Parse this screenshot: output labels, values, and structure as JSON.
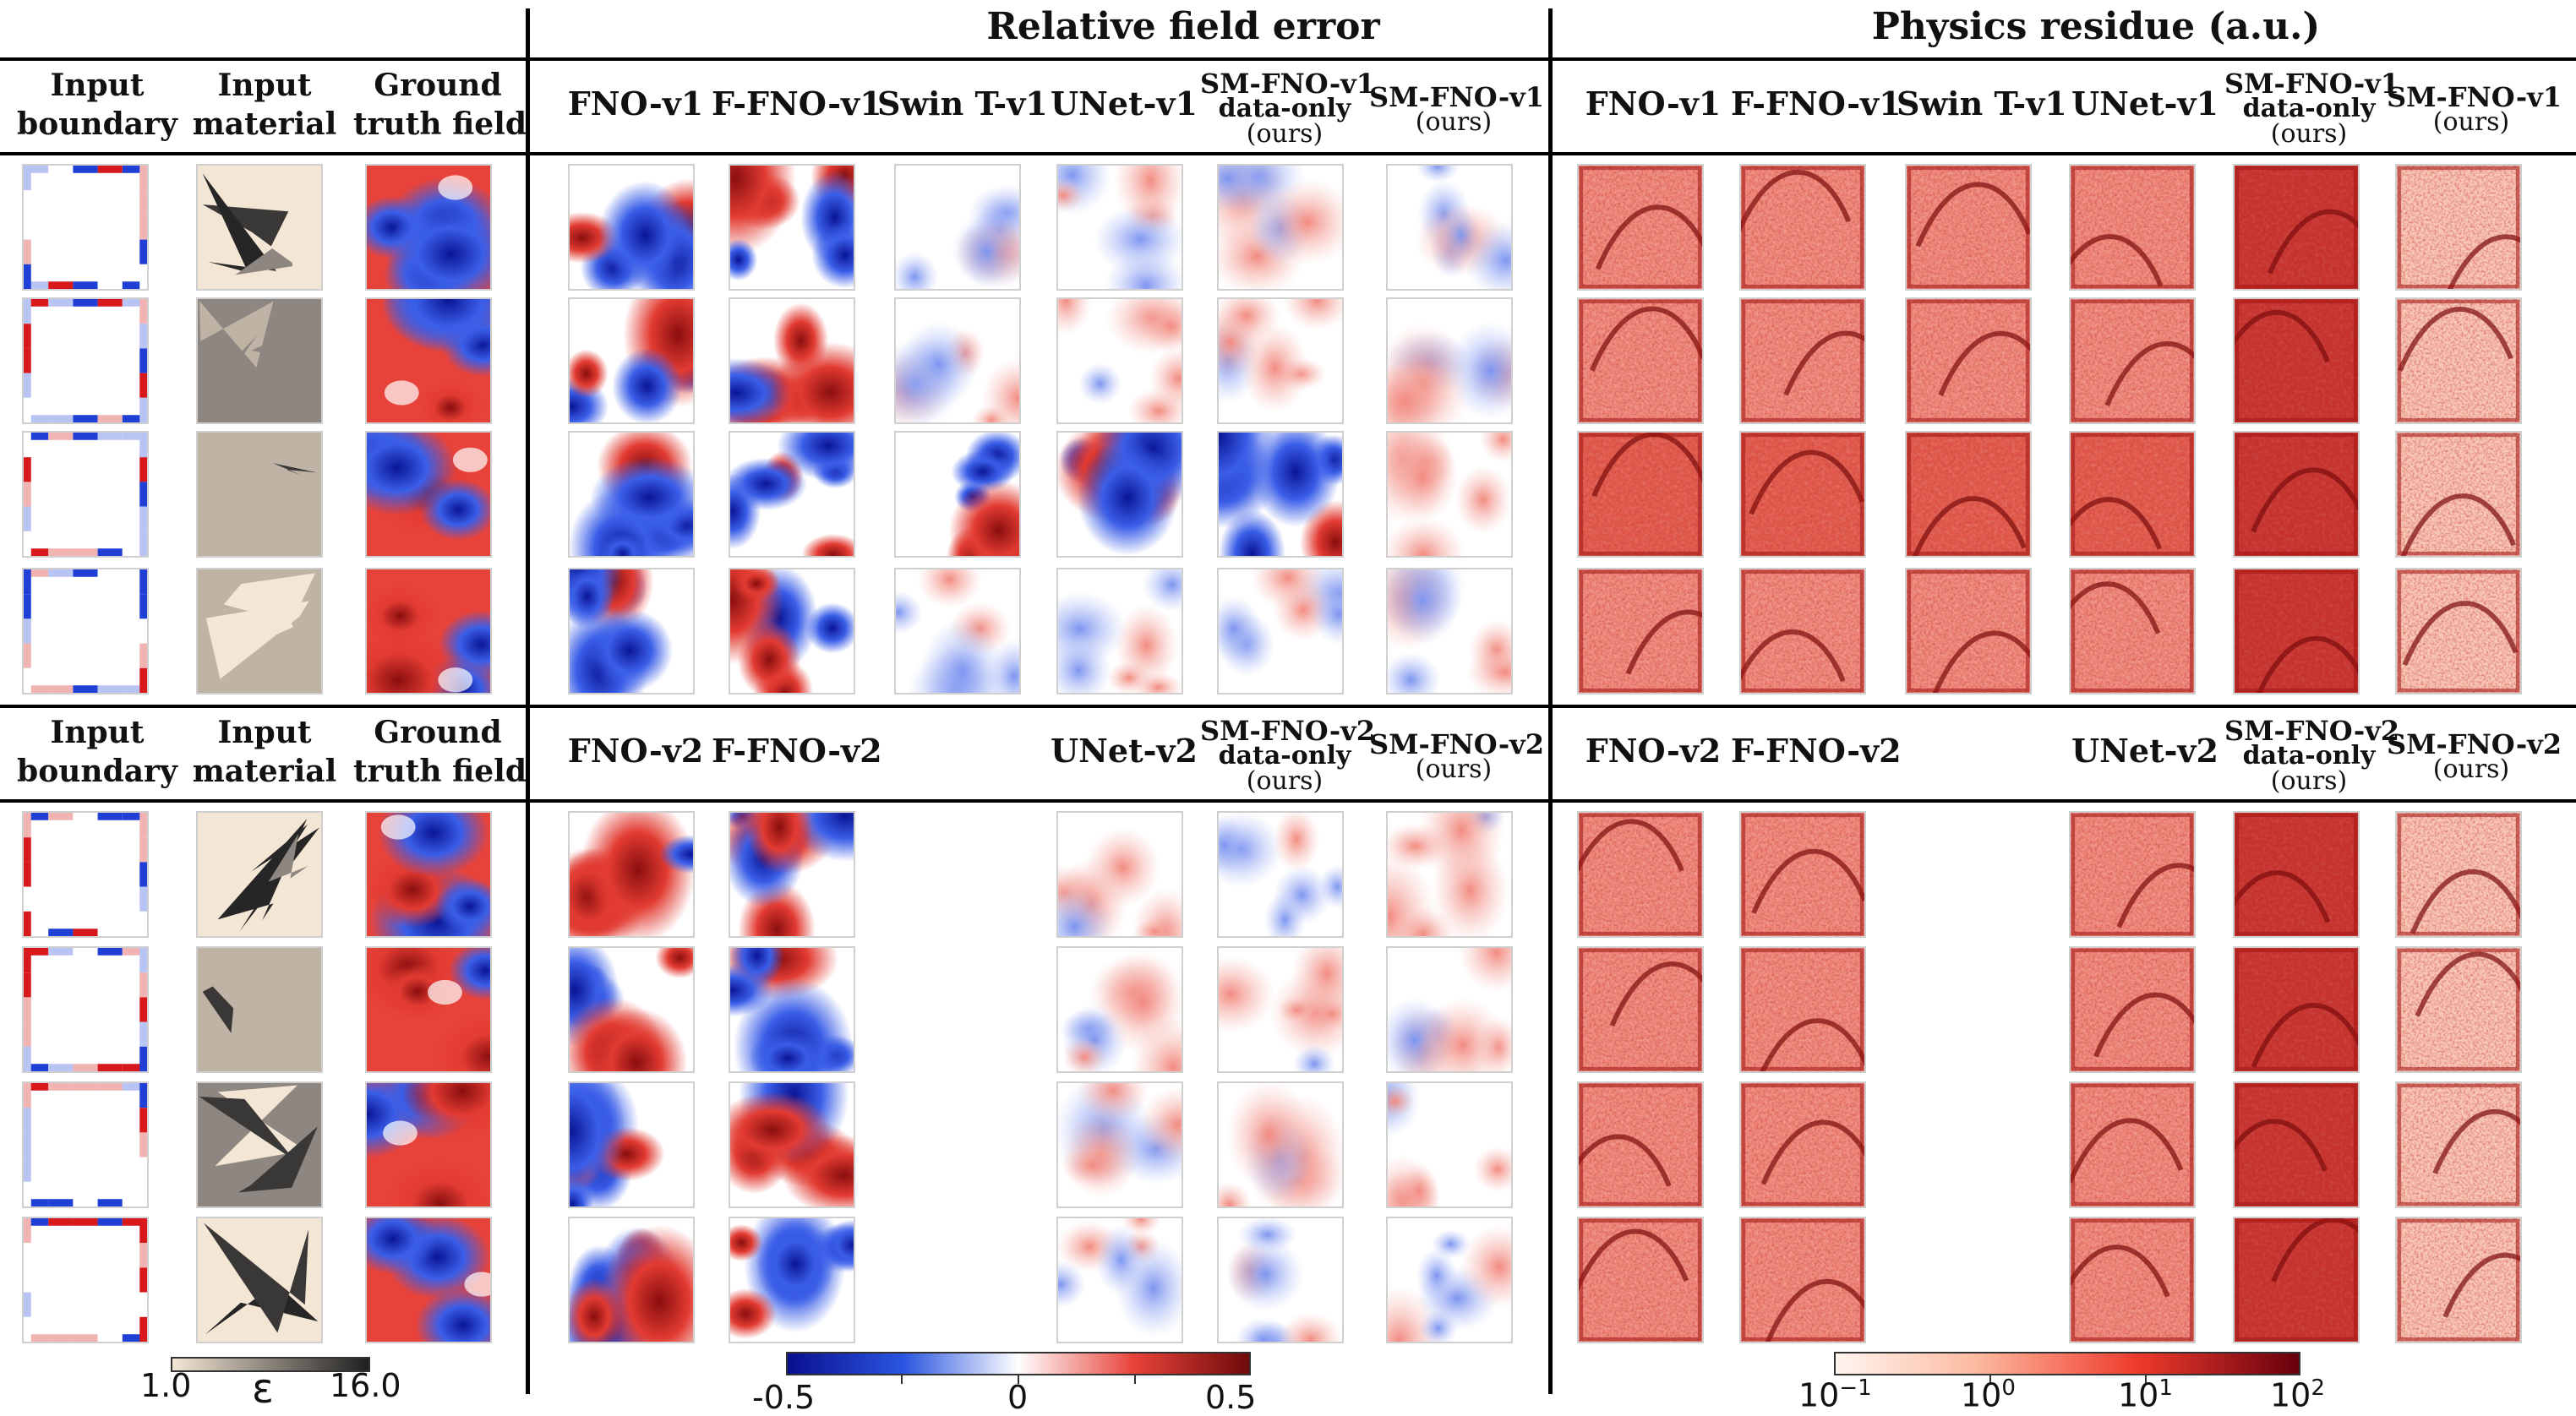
{
  "sections": {
    "relative_field_error": "Relative field error",
    "physics_residue": "Physics residue (a.u.)"
  },
  "input_headers": {
    "boundary": [
      "Input",
      "boundary"
    ],
    "material": [
      "Input",
      "material"
    ],
    "ground_truth": [
      "Ground",
      "truth field"
    ]
  },
  "v1_models": [
    {
      "lines": [
        "FNO-v1"
      ]
    },
    {
      "lines": [
        "F-FNO-v1"
      ]
    },
    {
      "lines": [
        "Swin T-v1"
      ]
    },
    {
      "lines": [
        "UNet-v1"
      ]
    },
    {
      "lines": [
        "SM-FNO-v1",
        "data-only",
        "(ours)"
      ]
    },
    {
      "lines": [
        "SM-FNO-v1",
        "(ours)"
      ]
    }
  ],
  "v2_models": [
    {
      "lines": [
        "FNO-v2"
      ]
    },
    {
      "lines": [
        "F-FNO-v2"
      ]
    },
    {
      "lines": [
        "UNet-v2"
      ]
    },
    {
      "lines": [
        "SM-FNO-v2",
        "data-only",
        "(ours)"
      ]
    },
    {
      "lines": [
        "SM-FNO-v2",
        "(ours)"
      ]
    }
  ],
  "colorbars": {
    "material": {
      "min": "1.0",
      "symbol": "ε",
      "max": "16.0",
      "colors": [
        "#f3e6d4",
        "#1f1f1f"
      ]
    },
    "error": {
      "labels": [
        "-0.5",
        "0",
        "0.5"
      ],
      "colors": [
        "#0a0f8f",
        "#2a55e0",
        "#ffffff",
        "#e8433a",
        "#6f0a0a"
      ]
    },
    "residue": {
      "labels": [
        "10",
        "10",
        "10",
        "10"
      ],
      "exponents": [
        "−1",
        "0",
        "1",
        "2"
      ],
      "colors": [
        "#fff5f0",
        "#fcbba1",
        "#ef3b2c",
        "#67000d"
      ]
    }
  },
  "palette": {
    "boundary_red": "#d7191c",
    "boundary_blue": "#1f3fd6",
    "beige": "#f3e6d4"
  }
}
